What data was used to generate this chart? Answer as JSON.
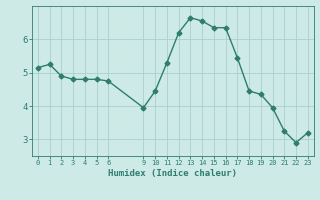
{
  "xlabel": "Humidex (Indice chaleur)",
  "x_values": [
    0,
    1,
    2,
    3,
    4,
    5,
    6,
    9,
    10,
    11,
    12,
    13,
    14,
    15,
    16,
    17,
    18,
    19,
    20,
    21,
    22,
    23
  ],
  "y_values": [
    5.15,
    5.25,
    4.9,
    4.8,
    4.8,
    4.8,
    4.75,
    3.95,
    4.45,
    5.3,
    6.2,
    6.65,
    6.55,
    6.35,
    6.35,
    5.45,
    4.45,
    4.35,
    3.95,
    3.25,
    2.9,
    3.2
  ],
  "line_color": "#2e7d6e",
  "marker": "D",
  "marker_size": 2.5,
  "bg_color": "#ceeae7",
  "grid_color": "#aacfcc",
  "tick_color": "#2e7d6e",
  "label_color": "#2e7d6e",
  "ylim": [
    2.5,
    7.0
  ],
  "yticks": [
    3,
    4,
    5,
    6
  ],
  "xticks": [
    0,
    1,
    2,
    3,
    4,
    5,
    6,
    9,
    10,
    11,
    12,
    13,
    14,
    15,
    16,
    17,
    18,
    19,
    20,
    21,
    22,
    23
  ],
  "linewidth": 1.0
}
